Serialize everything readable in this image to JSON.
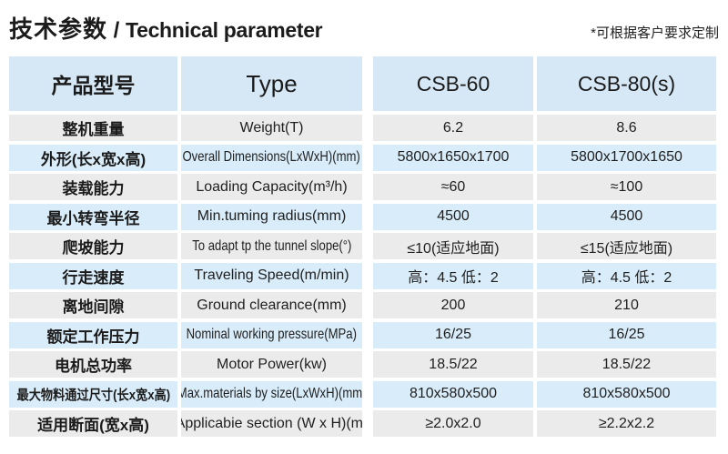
{
  "title": {
    "cn": "技术参数",
    "sep": " / ",
    "en": "Technical parameter"
  },
  "note": "*可根据客户要求定制",
  "colors": {
    "header_bg": "#d6e8f5",
    "row_blue_bg": "#d9ecf9",
    "row_gray_bg": "#ebebeb",
    "text": "#1b1b1b"
  },
  "table": {
    "header": {
      "cn": "产品型号",
      "type": "Type",
      "model1": "CSB-60",
      "model2": "CSB-80(s)"
    },
    "rows": [
      {
        "cn": "整机重量",
        "en": "Weight(T)",
        "v1": "6.2",
        "v2": "8.6"
      },
      {
        "cn": "外形(长x宽x高)",
        "en": "Overall Dimensions(LxWxH)(mm)",
        "v1": "5800x1650x1700",
        "v2": "5800x1700x1650"
      },
      {
        "cn": "装载能力",
        "en": "Loading Capacity(m³/h)",
        "v1": "≈60",
        "v2": "≈100"
      },
      {
        "cn": "最小转弯半径",
        "en": "Min.tuming radius(mm)",
        "v1": "4500",
        "v2": "4500"
      },
      {
        "cn": "爬坡能力",
        "en": "To adapt tp the tunnel slope(°)",
        "v1": "≤10(适应地面)",
        "v2": "≤15(适应地面)"
      },
      {
        "cn": "行走速度",
        "en": "Traveling Speed(m/min)",
        "v1": "高：4.5 低：2",
        "v2": "高：4.5 低：2"
      },
      {
        "cn": "离地间隙",
        "en": "Ground clearance(mm)",
        "v1": "200",
        "v2": "210"
      },
      {
        "cn": "额定工作压力",
        "en": "Nominal working pressure(MPa)",
        "v1": "16/25",
        "v2": "16/25"
      },
      {
        "cn": "电机总功率",
        "en": "Motor Power(kw)",
        "v1": "18.5/22",
        "v2": "18.5/22"
      },
      {
        "cn": "最大物料通过尺寸(长x宽x高)",
        "en": "Max.materials by size(LxWxH)(mm)",
        "v1": "810x580x500",
        "v2": "810x580x500"
      },
      {
        "cn": "适用断面(宽x高)",
        "en": "Applicabie section (W x H)(m)",
        "v1": "≥2.0x2.0",
        "v2": "≥2.2x2.2"
      }
    ]
  }
}
